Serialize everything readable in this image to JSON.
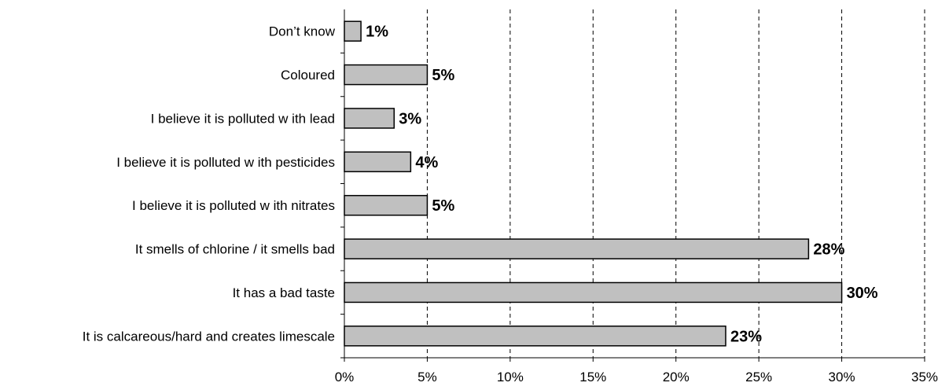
{
  "chart_data": {
    "type": "bar",
    "orientation": "horizontal",
    "categories": [
      "Don’t know",
      "Coloured",
      "I believe it is polluted w ith  lead",
      "I believe it is polluted w ith  pesticides",
      "I believe it is polluted w ith nitrates",
      "It smells of  chlorine / it smells bad",
      "It has a bad taste",
      "It is calcareous/hard and creates limescale"
    ],
    "values": [
      1,
      5,
      3,
      4,
      5,
      28,
      30,
      23
    ],
    "value_labels": [
      "1%",
      "5%",
      "3%",
      "4%",
      "5%",
      "28%",
      "30%",
      "23%"
    ],
    "x_ticks": [
      "0%",
      "5%",
      "10%",
      "15%",
      "20%",
      "25%",
      "30%",
      "35%"
    ],
    "xlim": [
      0,
      35
    ],
    "grid": "vertical dashed",
    "bar_color": "#c0c0c0",
    "bar_edge_color": "#000000"
  }
}
